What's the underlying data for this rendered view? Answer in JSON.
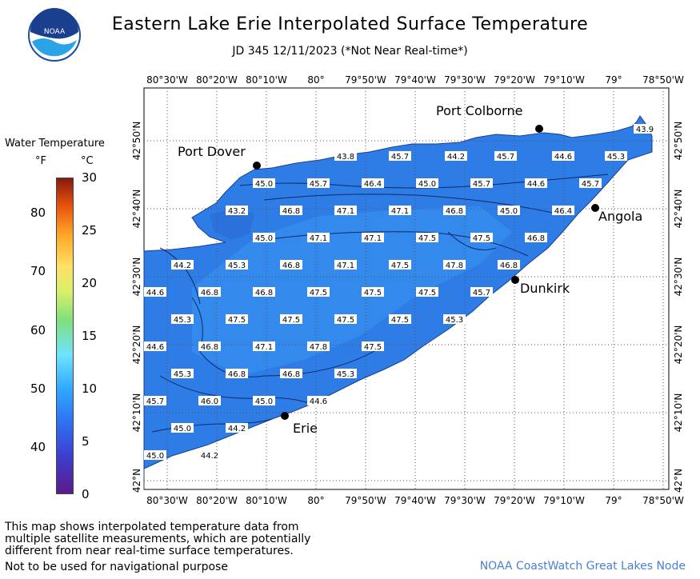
{
  "title": "Eastern Lake Erie Interpolated Surface Temperature",
  "subtitle": "JD 345 12/11/2023 (*Not Near Real-time*)",
  "logo_text": "NOAA",
  "legend": {
    "title": "Water Temperature",
    "unit_f": "°F",
    "unit_c": "°C",
    "f_ticks": [
      "80",
      "70",
      "60",
      "50",
      "40"
    ],
    "c_ticks": [
      "30",
      "25",
      "20",
      "15",
      "10",
      "5",
      "0"
    ],
    "f_range": [
      32,
      86
    ],
    "c_range": [
      0,
      30
    ]
  },
  "map": {
    "lon_labels": [
      "80°30'W",
      "80°20'W",
      "80°10'W",
      "80°",
      "79°50'W",
      "79°40'W",
      "79°30'W",
      "79°20'W",
      "79°10'W",
      "79°",
      "78°50'W"
    ],
    "lat_labels": [
      "42°50'N",
      "42°40'N",
      "42°30'N",
      "42°20'N",
      "42°10'N",
      "42°N"
    ],
    "cities": [
      {
        "name": "Port Dover"
      },
      {
        "name": "Port Colborne"
      },
      {
        "name": "Angola"
      },
      {
        "name": "Dunkirk"
      },
      {
        "name": "Erie"
      }
    ],
    "temperature_labels": [
      "43.9",
      "43.8",
      "45.7",
      "44.2",
      "45.7",
      "44.6",
      "45.3",
      "45.0",
      "45.7",
      "46.4",
      "45.0",
      "45.7",
      "44.6",
      "45.7",
      "43.2",
      "46.8",
      "47.1",
      "47.1",
      "46.8",
      "45.0",
      "46.4",
      "45.0",
      "47.1",
      "47.1",
      "47.5",
      "47.5",
      "46.8",
      "44.2",
      "45.3",
      "46.8",
      "47.1",
      "47.5",
      "47.8",
      "46.8",
      "44.6",
      "46.8",
      "46.8",
      "47.5",
      "47.5",
      "47.5",
      "45.7",
      "45.3",
      "47.5",
      "47.5",
      "47.5",
      "47.5",
      "45.3",
      "44.6",
      "46.8",
      "47.1",
      "47.8",
      "47.5",
      "45.3",
      "46.8",
      "46.8",
      "45.3",
      "45.7",
      "46.0",
      "45.0",
      "44.6",
      "45.0",
      "44.2",
      "45.0",
      "44.2"
    ],
    "water_color": "#2e7de6",
    "cool_water_color": "#2a6fd8",
    "land_color": "#ffffff"
  },
  "footer": {
    "note_line1": "This map shows interpolated temperature data from",
    "note_line2": "multiple satellite measurements, which are potentially",
    "note_line3": "different from near real-time surface temperatures.",
    "warning": "Not to be used for navigational purpose",
    "credit": "NOAA CoastWatch Great Lakes Node"
  }
}
